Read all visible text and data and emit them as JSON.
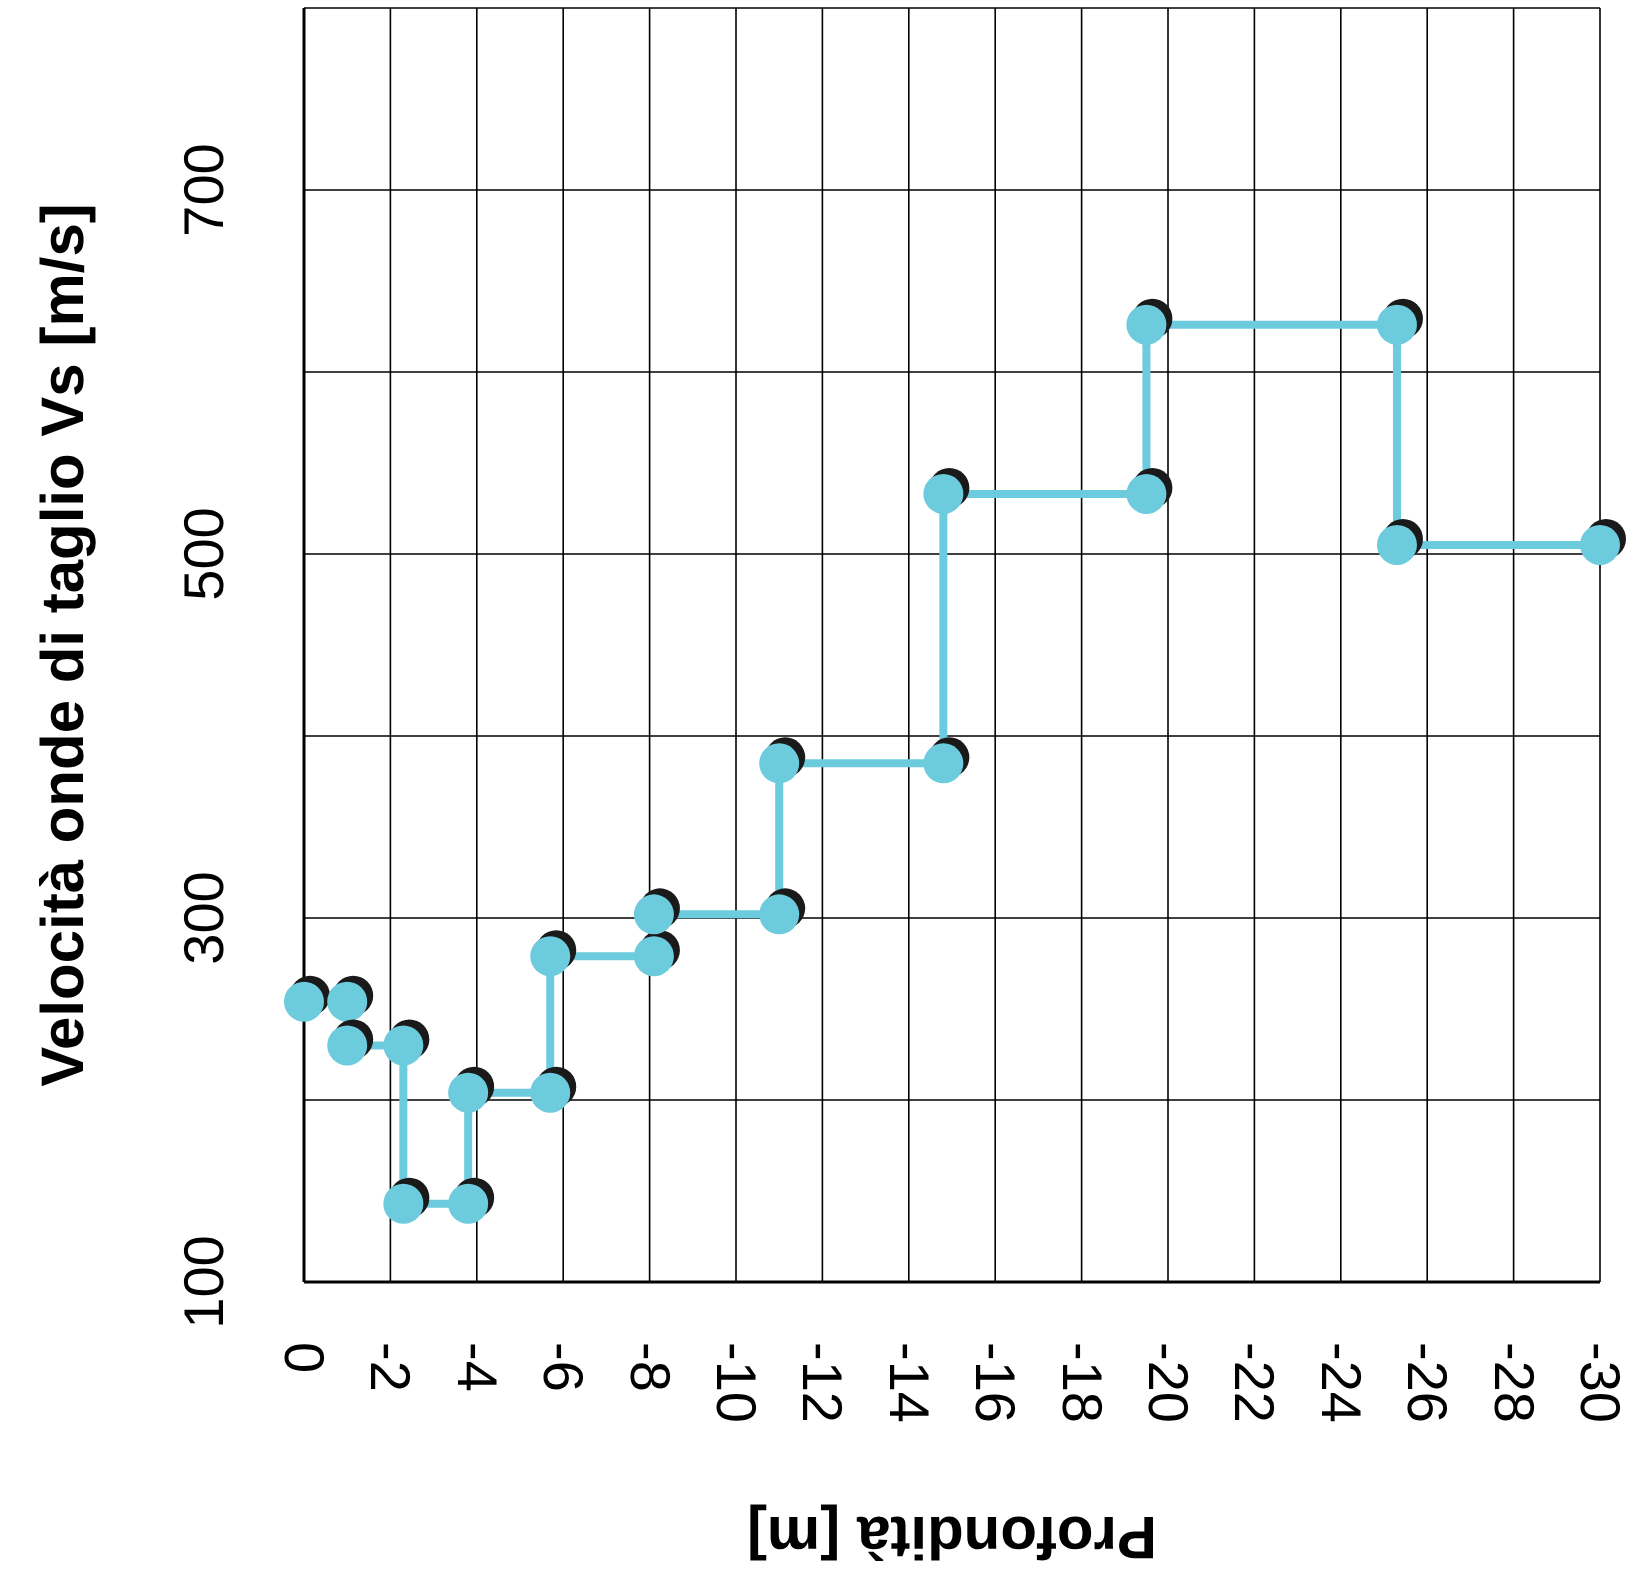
{
  "chart_data": {
    "type": "line",
    "xlabel": "Profondità [m]",
    "ylabel": "Velocità onde di taglio Vs [m/s]",
    "x": [
      0,
      -1,
      -1,
      -2.3,
      -2.3,
      -3.8,
      -3.8,
      -5.7,
      -5.7,
      -8.1,
      -8.1,
      -11,
      -11,
      -14.8,
      -14.8,
      -19.5,
      -19.5,
      -25.3,
      -25.3,
      -30
    ],
    "series": [
      {
        "color": "#6ccbdc",
        "values": [
          254,
          254,
          230,
          230,
          143,
          143,
          204,
          204,
          279,
          279,
          302,
          302,
          385,
          385,
          533,
          533,
          626,
          626,
          505,
          505
        ]
      }
    ],
    "xlim": [
      0,
      -30
    ],
    "xticks": [
      0,
      -2,
      -4,
      -6,
      -8,
      -10,
      -12,
      -14,
      -16,
      -18,
      -20,
      -22,
      -24,
      -26,
      -28,
      -30
    ],
    "ylim": [
      100,
      800
    ],
    "yticks": [
      100,
      {
        "value": 200,
        "label": null
      },
      300,
      {
        "value": 400,
        "label": null
      },
      500,
      {
        "value": 600,
        "label": null
      },
      700,
      {
        "value": 800,
        "label": null
      }
    ],
    "grid": true,
    "marker": "circle",
    "line_style": "solid"
  }
}
